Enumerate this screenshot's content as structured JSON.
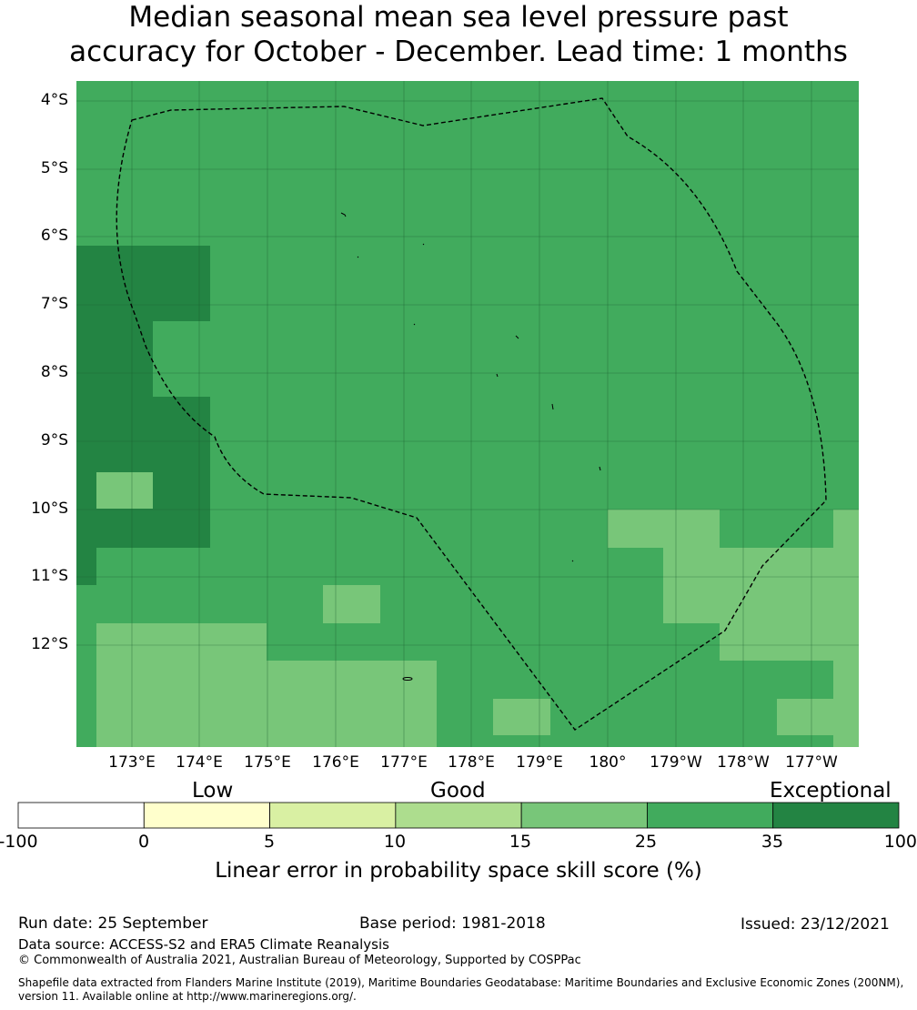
{
  "title_line1": "Median seasonal mean sea level pressure past",
  "title_line2": "accuracy for October - December. Lead time: 1 months",
  "lat_labels": [
    "4°S",
    "5°S",
    "6°S",
    "7°S",
    "8°S",
    "9°S",
    "10°S",
    "11°S",
    "12°S"
  ],
  "lon_labels": [
    "173°E",
    "174°E",
    "175°E",
    "176°E",
    "177°E",
    "178°E",
    "179°E",
    "180°",
    "179°W",
    "178°W",
    "177°W"
  ],
  "colorbar": {
    "categories": [
      "Low",
      "Good",
      "Exceptional"
    ],
    "ticks": [
      "-100",
      "0",
      "5",
      "10",
      "15",
      "25",
      "35",
      "100"
    ],
    "colors": [
      "#ffffff",
      "#ffffcc",
      "#d9f0a3",
      "#addd8e",
      "#78c679",
      "#41ab5d",
      "#238443"
    ],
    "label": "Linear error in probability space skill score (%)"
  },
  "map_colors": {
    "bg": "#41ab5d",
    "dark": "#238443",
    "light": "#78c679"
  },
  "footer": {
    "run_date": "Run date: 25 September",
    "base_period": "Base period: 1981-2018",
    "issued": "Issued: 23/12/2021",
    "data_source": "Data source: ACCESS-S2 and ERA5 Climate Reanalysis",
    "copyright": "© Commonwealth of Australia 2021, Australian Bureau of Meteorology, Supported by COSPPac",
    "shapefile_line1": "Shapefile data extracted from Flanders Marine Institute (2019), Maritime Boundaries Geodatabase: Maritime Boundaries and Exclusive Economic Zones (200NM),",
    "shapefile_line2": "version 11. Available online at http://www.marineregions.org/."
  }
}
